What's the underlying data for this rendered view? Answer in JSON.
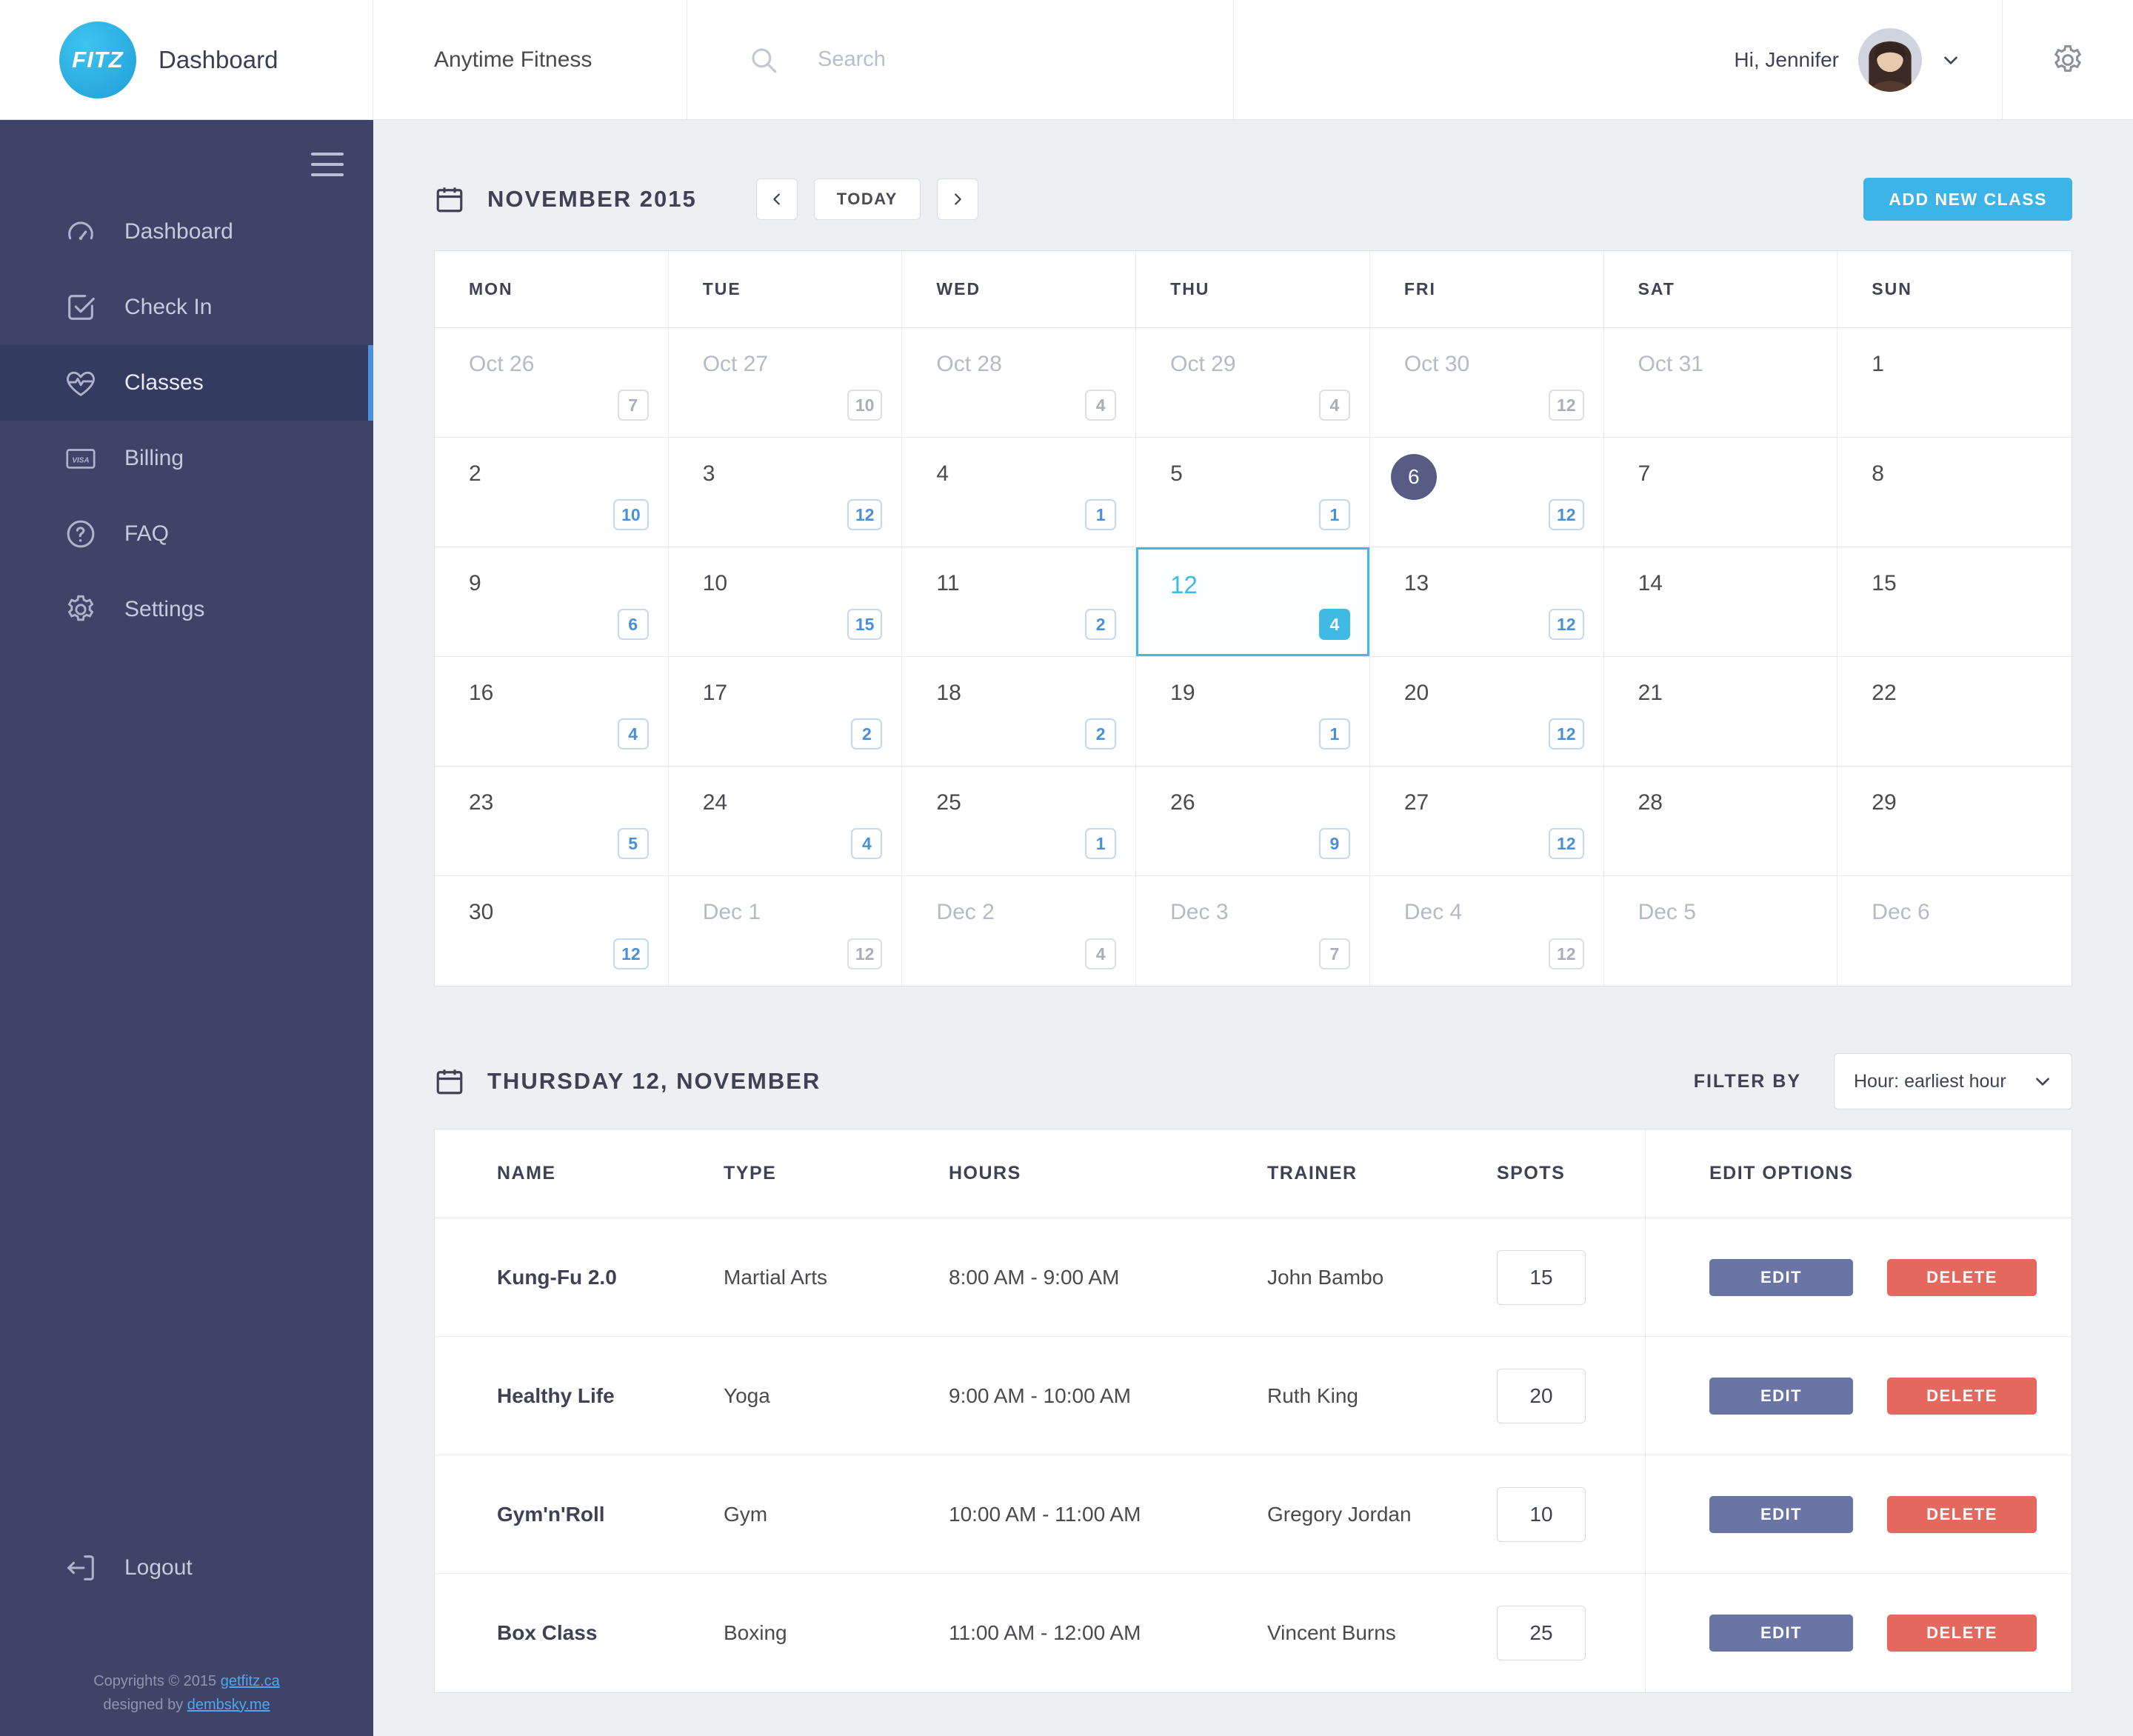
{
  "header": {
    "logo_text": "FITZ",
    "title": "Dashboard",
    "org_name": "Anytime Fitness",
    "search_placeholder": "Search",
    "greeting": "Hi, Jennifer"
  },
  "sidebar": {
    "items": [
      {
        "label": "Dashboard",
        "icon": "gauge-icon",
        "active": false
      },
      {
        "label": "Check In",
        "icon": "check-square-icon",
        "active": false
      },
      {
        "label": "Classes",
        "icon": "heartbeat-icon",
        "active": true
      },
      {
        "label": "Billing",
        "icon": "visa-card-icon",
        "active": false
      },
      {
        "label": "FAQ",
        "icon": "question-circle-icon",
        "active": false
      },
      {
        "label": "Settings",
        "icon": "gear-icon",
        "active": false
      }
    ],
    "logout_label": "Logout",
    "footer": {
      "line1_prefix": "Copyrights © 2015 ",
      "line1_link": "getfitz.ca",
      "line2_prefix": "designed by ",
      "line2_link": "dembsky.me"
    }
  },
  "calendar": {
    "month_title": "NOVEMBER 2015",
    "today_button": "TODAY",
    "add_class_button": "ADD NEW CLASS",
    "weekdays": [
      "MON",
      "TUE",
      "WED",
      "THU",
      "FRI",
      "SAT",
      "SUN"
    ],
    "weeks": [
      [
        {
          "label": "Oct 26",
          "muted": true,
          "badge": "7"
        },
        {
          "label": "Oct 27",
          "muted": true,
          "badge": "10"
        },
        {
          "label": "Oct 28",
          "muted": true,
          "badge": "4"
        },
        {
          "label": "Oct 29",
          "muted": true,
          "badge": "4"
        },
        {
          "label": "Oct 30",
          "muted": true,
          "badge": "12"
        },
        {
          "label": "Oct 31",
          "muted": true
        },
        {
          "label": "1"
        }
      ],
      [
        {
          "label": "2",
          "badge": "10"
        },
        {
          "label": "3",
          "badge": "12"
        },
        {
          "label": "4",
          "badge": "1"
        },
        {
          "label": "5",
          "badge": "1"
        },
        {
          "label": "6",
          "today": true,
          "badge": "12"
        },
        {
          "label": "7"
        },
        {
          "label": "8"
        }
      ],
      [
        {
          "label": "9",
          "badge": "6"
        },
        {
          "label": "10",
          "badge": "15"
        },
        {
          "label": "11",
          "badge": "2"
        },
        {
          "label": "12",
          "selected": true,
          "badge": "4"
        },
        {
          "label": "13",
          "badge": "12"
        },
        {
          "label": "14"
        },
        {
          "label": "15"
        }
      ],
      [
        {
          "label": "16",
          "badge": "4"
        },
        {
          "label": "17",
          "badge": "2"
        },
        {
          "label": "18",
          "badge": "2"
        },
        {
          "label": "19",
          "badge": "1"
        },
        {
          "label": "20",
          "badge": "12"
        },
        {
          "label": "21"
        },
        {
          "label": "22"
        }
      ],
      [
        {
          "label": "23",
          "badge": "5"
        },
        {
          "label": "24",
          "badge": "4"
        },
        {
          "label": "25",
          "badge": "1"
        },
        {
          "label": "26",
          "badge": "9"
        },
        {
          "label": "27",
          "badge": "12"
        },
        {
          "label": "28"
        },
        {
          "label": "29"
        }
      ],
      [
        {
          "label": "30",
          "badge": "12"
        },
        {
          "label": "Dec 1",
          "muted": true,
          "badge": "12"
        },
        {
          "label": "Dec 2",
          "muted": true,
          "badge": "4"
        },
        {
          "label": "Dec 3",
          "muted": true,
          "badge": "7"
        },
        {
          "label": "Dec 4",
          "muted": true,
          "badge": "12"
        },
        {
          "label": "Dec 5",
          "muted": true
        },
        {
          "label": "Dec 6",
          "muted": true
        }
      ]
    ]
  },
  "day_detail": {
    "title": "THURSDAY 12, NOVEMBER",
    "filter_label": "FILTER BY",
    "filter_value": "Hour: earliest hour",
    "table": {
      "headers": [
        "NAME",
        "TYPE",
        "HOURS",
        "TRAINER",
        "SPOTS",
        "EDIT OPTIONS"
      ],
      "edit_button": "EDIT",
      "delete_button": "DELETE",
      "rows": [
        {
          "name": "Kung-Fu 2.0",
          "type": "Martial Arts",
          "hours": "8:00 AM - 9:00 AM",
          "trainer": "John Bambo",
          "spots": "15"
        },
        {
          "name": "Healthy Life",
          "type": "Yoga",
          "hours": "9:00 AM - 10:00 AM",
          "trainer": "Ruth King",
          "spots": "20"
        },
        {
          "name": "Gym'n'Roll",
          "type": "Gym",
          "hours": "10:00 AM - 11:00 AM",
          "trainer": "Gregory Jordan",
          "spots": "10"
        },
        {
          "name": "Box Class",
          "type": "Boxing",
          "hours": "11:00 AM - 12:00 AM",
          "trainer": "Vincent Burns",
          "spots": "25"
        }
      ]
    }
  },
  "colors": {
    "accent_cyan": "#3cb4e8",
    "sidebar_bg": "#3e4467",
    "active_item_bg": "#343b60",
    "active_accent": "#4a8fe2",
    "badge_blue": "#4a90d9",
    "today_circle": "#565c84",
    "selected_day": "#41b9e5",
    "edit_button": "#6a75a5",
    "delete_button": "#e4685e"
  }
}
